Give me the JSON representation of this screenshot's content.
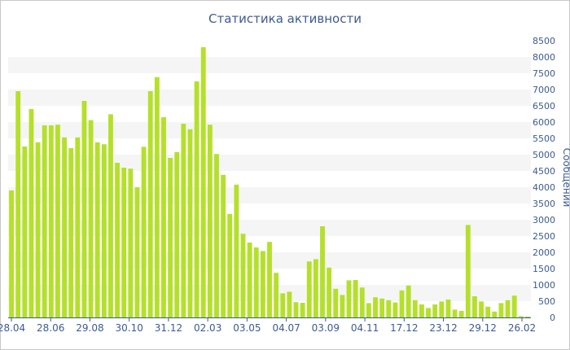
{
  "chart_data": {
    "type": "bar",
    "title": "Статистика активности",
    "ylabel": "Сообщений",
    "ylim": [
      0,
      8500
    ],
    "yticks": [
      0,
      500,
      1000,
      1500,
      2000,
      2500,
      3000,
      3500,
      4000,
      4500,
      5000,
      5500,
      6000,
      6500,
      7000,
      7500,
      8000,
      8500
    ],
    "x_tick_labels": [
      "28.04",
      "28.06",
      "29.08",
      "30.10",
      "31.12",
      "02.03",
      "03.05",
      "04.07",
      "03.09",
      "04.11",
      "17.12",
      "23.12",
      "29.12",
      "26.02"
    ],
    "grid": "alternating horizontal bands",
    "bar_color": "#b5e02a",
    "values": [
      3900,
      6950,
      5250,
      6400,
      5380,
      5900,
      5900,
      5920,
      5530,
      5200,
      5530,
      6650,
      6060,
      5380,
      5320,
      6240,
      4750,
      4600,
      4570,
      4000,
      5240,
      6950,
      7380,
      6150,
      4900,
      5080,
      5950,
      5780,
      7250,
      8300,
      5920,
      5020,
      4380,
      3180,
      4080,
      2570,
      2300,
      2150,
      2040,
      2320,
      1370,
      740,
      790,
      470,
      450,
      1720,
      1790,
      2800,
      1530,
      880,
      690,
      1140,
      1150,
      920,
      440,
      620,
      580,
      530,
      460,
      830,
      980,
      530,
      400,
      290,
      400,
      490,
      550,
      240,
      200,
      2840,
      650,
      490,
      330,
      180,
      440,
      530,
      670,
      40,
      30
    ]
  }
}
